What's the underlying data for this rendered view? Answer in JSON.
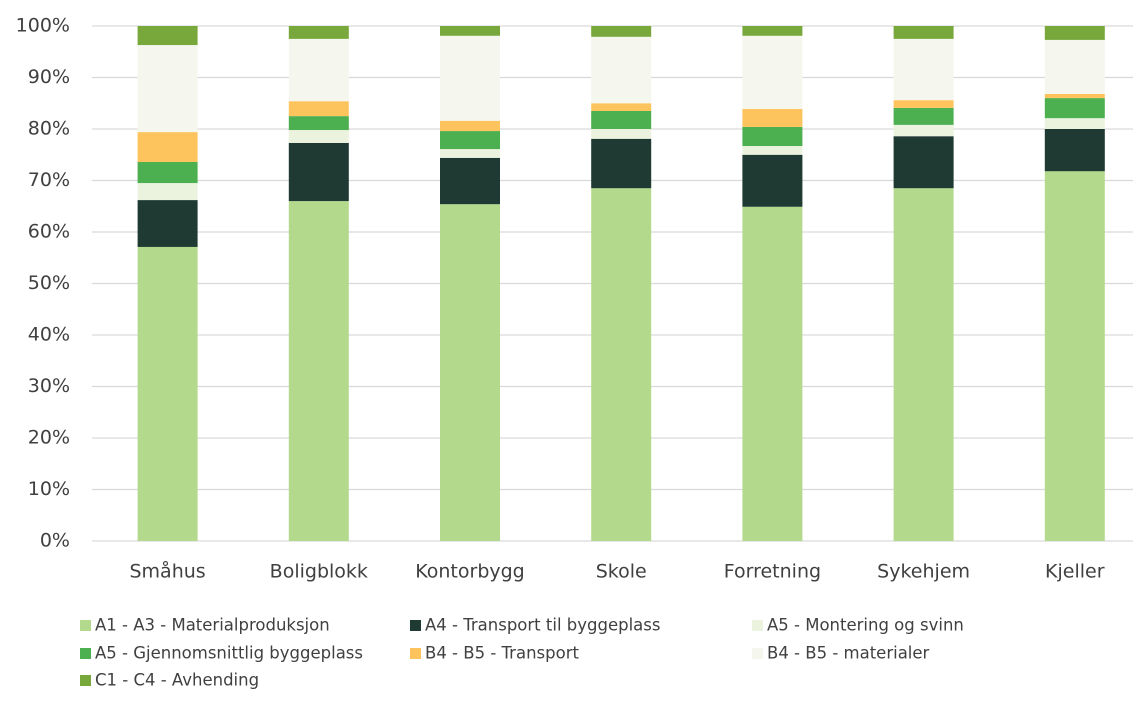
{
  "chart_data": {
    "type": "stacked_bar_100",
    "categories": [
      "Småhus",
      "Boligblokk",
      "Kontorbygg",
      "Skole",
      "Forretning",
      "Sykehjem",
      "Kjeller"
    ],
    "series": [
      {
        "name": "A1 - A3 - Materialproduksjon",
        "color": "#b3d98c",
        "values": [
          57.1,
          66.0,
          65.4,
          68.5,
          64.9,
          68.5,
          71.8
        ]
      },
      {
        "name": "A4 - Transport til byggeplass",
        "color": "#1e3a32",
        "values": [
          9.1,
          11.3,
          9.0,
          9.6,
          10.1,
          10.1,
          8.2
        ]
      },
      {
        "name": "A5 - Montering og svinn",
        "color": "#ebf3de",
        "values": [
          3.3,
          2.5,
          1.7,
          1.9,
          1.7,
          2.2,
          2.1
        ]
      },
      {
        "name": "A5 - Gjennomsnittlig byggeplass",
        "color": "#4caf50",
        "values": [
          4.1,
          2.7,
          3.5,
          3.5,
          3.7,
          3.3,
          3.9
        ]
      },
      {
        "name": "B4 - B5 - Transport",
        "color": "#fdc35c",
        "values": [
          5.8,
          2.9,
          2.0,
          1.5,
          3.5,
          1.5,
          0.8
        ]
      },
      {
        "name": "B4 - B5 - materialer",
        "color": "#f5f7ef",
        "values": [
          16.9,
          12.1,
          16.5,
          12.9,
          14.2,
          11.9,
          10.5
        ]
      },
      {
        "name": "C1 - C4 - Avhending",
        "color": "#78a83c",
        "values": [
          3.7,
          2.5,
          1.9,
          2.1,
          1.9,
          2.5,
          2.7
        ]
      }
    ],
    "ylim": [
      0,
      100
    ],
    "yticks": [
      {
        "value": 0,
        "label": "0%"
      },
      {
        "value": 10,
        "label": "10%"
      },
      {
        "value": 20,
        "label": "20%"
      },
      {
        "value": 30,
        "label": "30%"
      },
      {
        "value": 40,
        "label": "40%"
      },
      {
        "value": 50,
        "label": "50%"
      },
      {
        "value": 60,
        "label": "60%"
      },
      {
        "value": 70,
        "label": "70%"
      },
      {
        "value": 80,
        "label": "80%"
      },
      {
        "value": 90,
        "label": "90%"
      },
      {
        "value": 100,
        "label": "100%"
      }
    ],
    "grid": true,
    "legend": "bottom"
  }
}
